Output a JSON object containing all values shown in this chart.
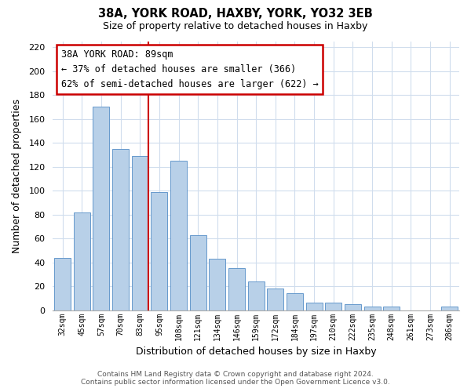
{
  "title": "38A, YORK ROAD, HAXBY, YORK, YO32 3EB",
  "subtitle": "Size of property relative to detached houses in Haxby",
  "xlabel": "Distribution of detached houses by size in Haxby",
  "ylabel": "Number of detached properties",
  "footer_line1": "Contains HM Land Registry data © Crown copyright and database right 2024.",
  "footer_line2": "Contains public sector information licensed under the Open Government Licence v3.0.",
  "annotation_title": "38A YORK ROAD: 89sqm",
  "annotation_line1": "← 37% of detached houses are smaller (366)",
  "annotation_line2": "62% of semi-detached houses are larger (622) →",
  "bar_labels": [
    "32sqm",
    "45sqm",
    "57sqm",
    "70sqm",
    "83sqm",
    "95sqm",
    "108sqm",
    "121sqm",
    "134sqm",
    "146sqm",
    "159sqm",
    "172sqm",
    "184sqm",
    "197sqm",
    "210sqm",
    "222sqm",
    "235sqm",
    "248sqm",
    "261sqm",
    "273sqm",
    "286sqm"
  ],
  "bar_values": [
    44,
    82,
    170,
    135,
    129,
    99,
    125,
    63,
    43,
    35,
    24,
    18,
    14,
    6,
    6,
    5,
    3,
    3,
    0,
    0,
    3
  ],
  "bar_color": "#b8d0e8",
  "bar_edge_color": "#6699cc",
  "reference_line_color": "#cc0000",
  "reference_line_index": 4,
  "ylim": [
    0,
    225
  ],
  "yticks": [
    0,
    20,
    40,
    60,
    80,
    100,
    120,
    140,
    160,
    180,
    200,
    220
  ],
  "annotation_box_color": "#ffffff",
  "annotation_box_edge_color": "#cc0000",
  "background_color": "#ffffff",
  "grid_color": "#d0dded"
}
